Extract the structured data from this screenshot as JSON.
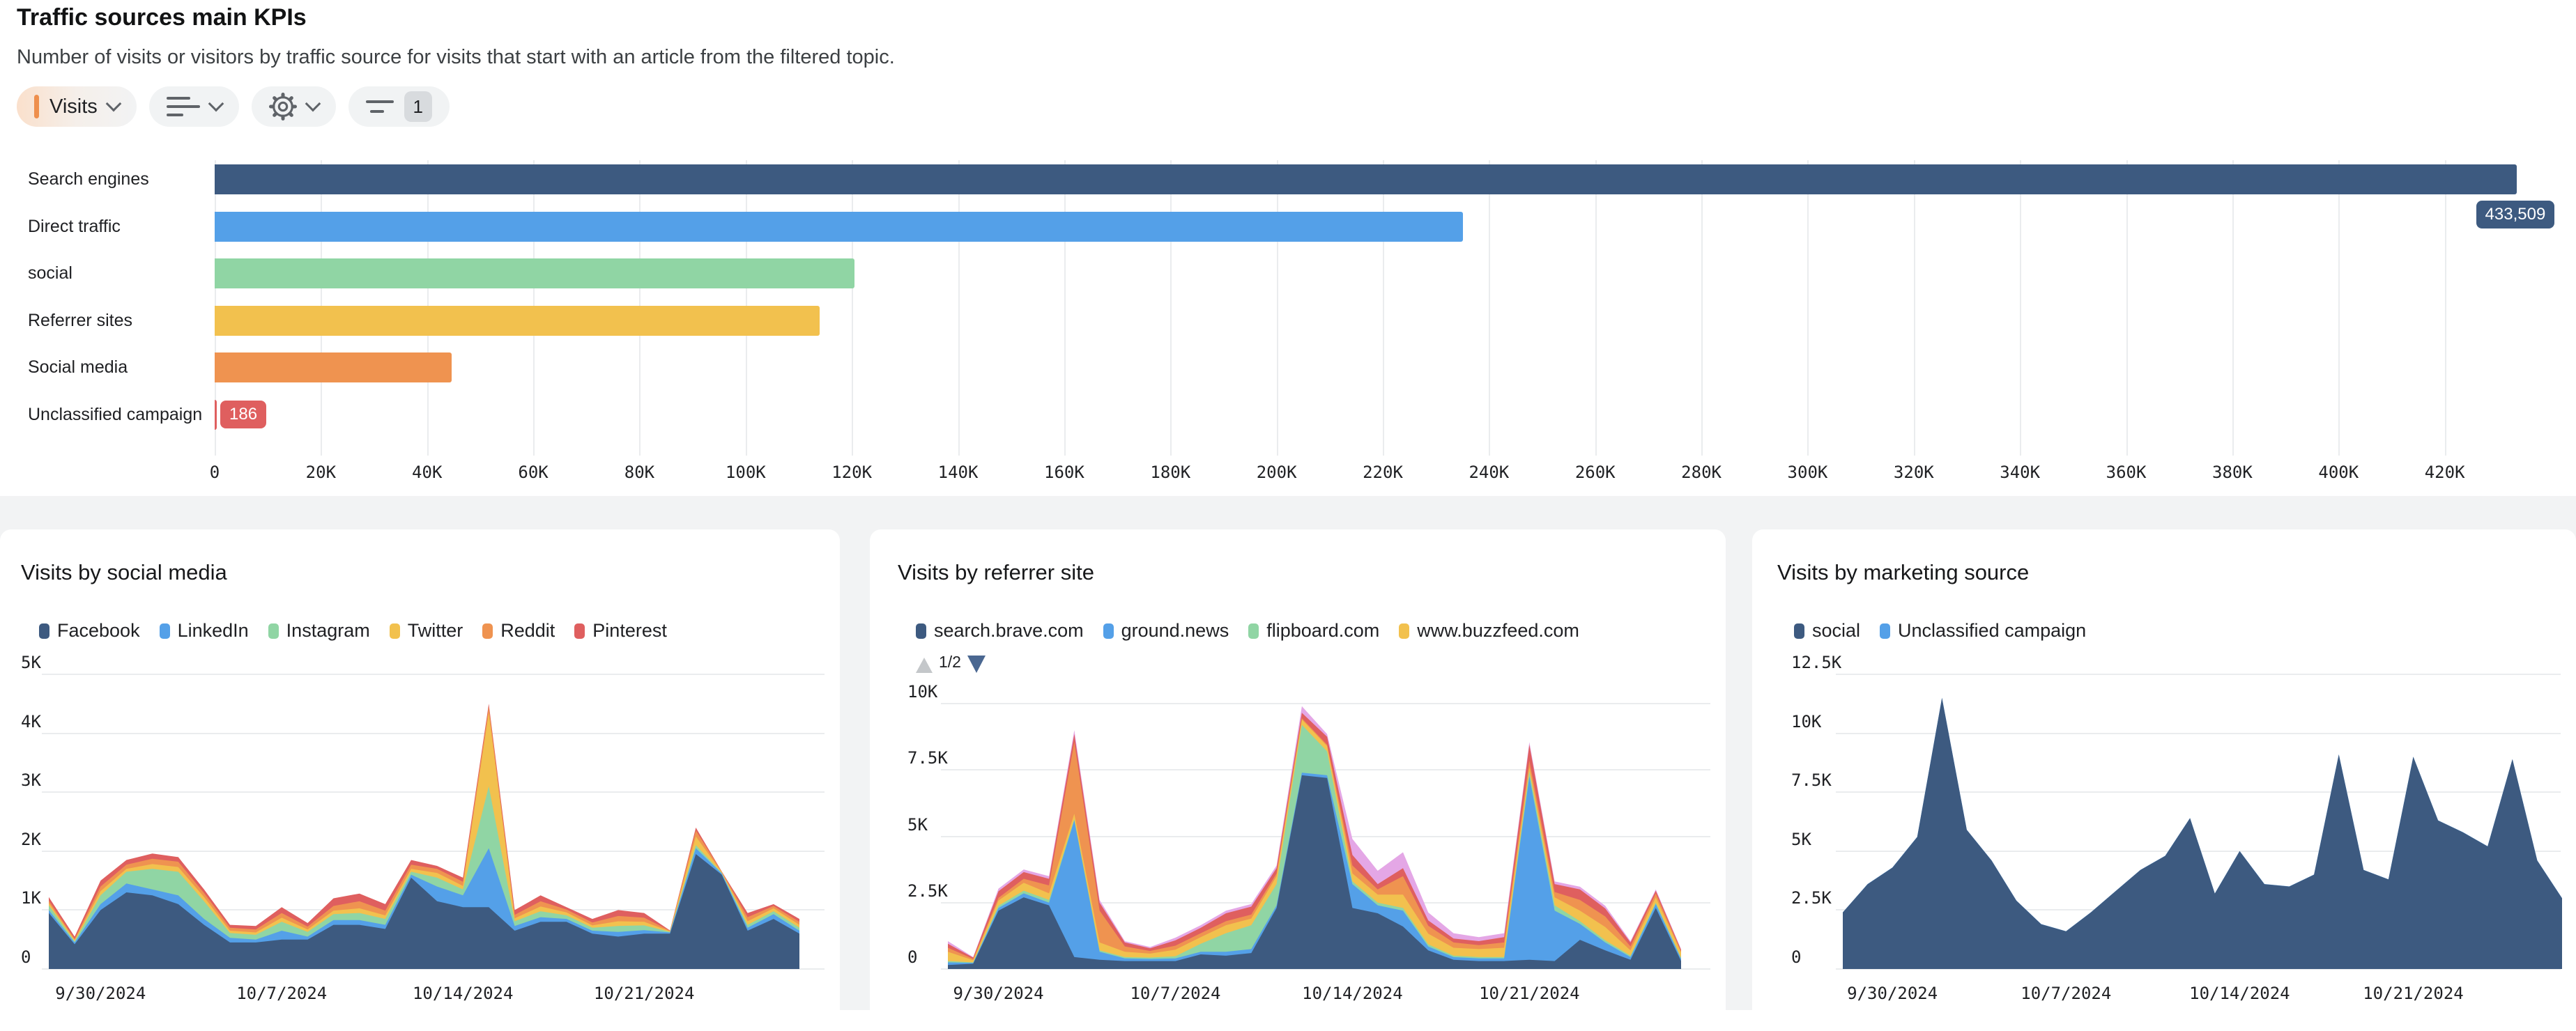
{
  "kpi": {
    "title": "Traffic sources main KPIs",
    "subtitle": "Number of visits or visitors by traffic source for visits that start with an article from the filtered topic.",
    "toolbar": {
      "metric_label": "Visits",
      "metric_color": "#EE8F4D",
      "chart_type_icon": "bar-list-icon",
      "settings_icon": "gear-icon",
      "filter_icon": "filter-icon",
      "filter_count": "1"
    }
  },
  "cards": [
    {
      "title": "Visits by social media"
    },
    {
      "title": "Visits by referrer site",
      "pager": {
        "label": "1/2",
        "up_enabled": false,
        "down_enabled": true
      }
    },
    {
      "title": "Visits by marketing source"
    }
  ],
  "chart_data": [
    {
      "id": "traffic-sources-main-kpis",
      "type": "bar",
      "orientation": "horizontal",
      "title": "Traffic sources main KPIs",
      "categories": [
        "Search engines",
        "Direct traffic",
        "social",
        "Referrer sites",
        "Social media",
        "Unclassified campaign"
      ],
      "values": [
        433509,
        235100,
        120500,
        113900,
        44600,
        186
      ],
      "colors": [
        "#3D5A80",
        "#54A0E8",
        "#90D5A4",
        "#F2C14E",
        "#EF9350",
        "#DF5F5F"
      ],
      "value_labels": [
        {
          "index": 0,
          "text": "433,509",
          "bg": "#3D5A80",
          "placement": "below-bar-end"
        },
        {
          "index": 5,
          "text": "186",
          "bg": "#DF5F5F",
          "placement": "after-bar"
        }
      ],
      "xlim": [
        0,
        440000
      ],
      "tick_step": 20000,
      "x_ticks": [
        "0",
        "20K",
        "40K",
        "60K",
        "80K",
        "100K",
        "120K",
        "140K",
        "160K",
        "180K",
        "200K",
        "220K",
        "240K",
        "260K",
        "280K",
        "300K",
        "320K",
        "340K",
        "360K",
        "380K",
        "400K",
        "420K"
      ],
      "grid": true
    },
    {
      "id": "visits-by-social-media",
      "type": "area",
      "stacked": true,
      "title": "Visits by social media",
      "n_points": 30,
      "x_ticks": [
        "9/30/2024",
        "10/7/2024",
        "10/14/2024",
        "10/21/2024"
      ],
      "x_tick_indices": [
        2,
        9,
        16,
        23
      ],
      "ymax": 5000,
      "y_ticks": [
        {
          "v": 0,
          "label": "0"
        },
        {
          "v": 1000,
          "label": "1K"
        },
        {
          "v": 2000,
          "label": "2K"
        },
        {
          "v": 3000,
          "label": "3K"
        },
        {
          "v": 4000,
          "label": "4K"
        },
        {
          "v": 5000,
          "label": "5K"
        }
      ],
      "legend_position": "top",
      "series": [
        {
          "name": "Facebook",
          "color": "#3D5A80",
          "in_legend": true,
          "values": [
            950,
            420,
            1000,
            1300,
            1250,
            1100,
            750,
            450,
            450,
            500,
            500,
            750,
            750,
            680,
            1550,
            1150,
            1050,
            1050,
            650,
            800,
            800,
            600,
            550,
            600,
            600,
            1950,
            1600,
            650,
            850,
            600
          ]
        },
        {
          "name": "LinkedIn",
          "color": "#54A0E8",
          "in_legend": true,
          "values": [
            50,
            30,
            100,
            150,
            100,
            150,
            100,
            80,
            50,
            150,
            50,
            80,
            80,
            70,
            50,
            250,
            200,
            1000,
            80,
            80,
            50,
            50,
            80,
            60,
            20,
            100,
            20,
            50,
            80,
            50
          ]
        },
        {
          "name": "Instagram",
          "color": "#90D5A4",
          "in_legend": true,
          "values": [
            80,
            20,
            150,
            200,
            350,
            400,
            300,
            80,
            80,
            150,
            80,
            100,
            120,
            100,
            50,
            150,
            100,
            1050,
            80,
            100,
            60,
            50,
            100,
            80,
            10,
            50,
            10,
            50,
            50,
            50
          ]
        },
        {
          "name": "Twitter",
          "color": "#F2C14E",
          "in_legend": true,
          "values": [
            40,
            20,
            70,
            50,
            80,
            80,
            70,
            40,
            40,
            70,
            40,
            60,
            80,
            60,
            50,
            80,
            60,
            1250,
            50,
            80,
            50,
            40,
            80,
            60,
            10,
            150,
            10,
            60,
            50,
            50
          ]
        },
        {
          "name": "Reddit",
          "color": "#EF9350",
          "in_legend": true,
          "values": [
            40,
            20,
            80,
            70,
            90,
            90,
            70,
            50,
            50,
            80,
            50,
            80,
            120,
            80,
            70,
            70,
            70,
            100,
            60,
            90,
            50,
            50,
            90,
            70,
            10,
            100,
            10,
            70,
            40,
            50
          ]
        },
        {
          "name": "Pinterest",
          "color": "#DF5F5F",
          "in_legend": true,
          "values": [
            60,
            40,
            100,
            80,
            90,
            80,
            60,
            50,
            60,
            100,
            60,
            130,
            130,
            110,
            80,
            50,
            70,
            50,
            80,
            100,
            40,
            60,
            100,
            80,
            5,
            50,
            5,
            70,
            30,
            50
          ]
        }
      ]
    },
    {
      "id": "visits-by-referrer-site",
      "type": "area",
      "stacked": true,
      "title": "Visits by referrer site",
      "legend_page": "1/2",
      "n_points": 30,
      "x_ticks": [
        "9/30/2024",
        "10/7/2024",
        "10/14/2024",
        "10/21/2024"
      ],
      "x_tick_indices": [
        2,
        9,
        16,
        23
      ],
      "ymax": 10000,
      "y_ticks": [
        {
          "v": 0,
          "label": "0"
        },
        {
          "v": 2500,
          "label": "2.5K"
        },
        {
          "v": 5000,
          "label": "5K"
        },
        {
          "v": 7500,
          "label": "7.5K"
        },
        {
          "v": 10000,
          "label": "10K"
        }
      ],
      "legend_position": "top",
      "series": [
        {
          "name": "search.brave.com",
          "color": "#3D5A80",
          "in_legend": true,
          "values": [
            150,
            200,
            2200,
            2700,
            2400,
            450,
            350,
            300,
            300,
            300,
            550,
            500,
            600,
            2300,
            7300,
            7200,
            2300,
            2100,
            1600,
            700,
            350,
            300,
            300,
            350,
            300,
            1100,
            700,
            350,
            2300,
            300
          ]
        },
        {
          "name": "ground.news",
          "color": "#54A0E8",
          "in_legend": true,
          "values": [
            100,
            30,
            100,
            150,
            100,
            5150,
            300,
            100,
            80,
            100,
            100,
            150,
            150,
            100,
            100,
            100,
            900,
            300,
            600,
            150,
            100,
            100,
            100,
            6900,
            1900,
            600,
            300,
            100,
            150,
            80
          ]
        },
        {
          "name": "flipboard.com",
          "color": "#90D5A4",
          "in_legend": true,
          "values": [
            50,
            20,
            80,
            100,
            100,
            50,
            50,
            50,
            50,
            80,
            300,
            700,
            900,
            800,
            1800,
            900,
            100,
            100,
            100,
            80,
            50,
            50,
            50,
            200,
            200,
            100,
            80,
            50,
            50,
            40
          ]
        },
        {
          "name": "www.buzzfeed.com",
          "color": "#F2C14E",
          "in_legend": true,
          "values": [
            350,
            80,
            200,
            300,
            250,
            200,
            300,
            200,
            150,
            250,
            250,
            300,
            250,
            300,
            200,
            200,
            300,
            300,
            500,
            400,
            300,
            300,
            350,
            150,
            300,
            400,
            500,
            200,
            200,
            200
          ]
        },
        {
          "name": "",
          "color": "#EF9350",
          "in_legend": false,
          "values": [
            150,
            50,
            100,
            150,
            300,
            2700,
            1200,
            200,
            100,
            150,
            150,
            150,
            150,
            100,
            50,
            50,
            300,
            200,
            700,
            300,
            200,
            150,
            200,
            250,
            200,
            400,
            400,
            150,
            150,
            50
          ]
        },
        {
          "name": "",
          "color": "#DF5F5F",
          "in_legend": false,
          "values": [
            150,
            50,
            250,
            250,
            250,
            300,
            300,
            150,
            100,
            200,
            200,
            300,
            300,
            200,
            200,
            300,
            400,
            200,
            300,
            200,
            150,
            150,
            200,
            600,
            300,
            400,
            300,
            150,
            100,
            50
          ]
        },
        {
          "name": "",
          "color": "#E4A7E6",
          "in_legend": false,
          "values": [
            100,
            20,
            100,
            100,
            100,
            150,
            100,
            50,
            50,
            100,
            100,
            100,
            100,
            100,
            250,
            100,
            600,
            500,
            600,
            300,
            200,
            150,
            150,
            100,
            100,
            100,
            100,
            50,
            50,
            30
          ]
        }
      ]
    },
    {
      "id": "visits-by-marketing-source",
      "type": "area",
      "stacked": true,
      "title": "Visits by marketing source",
      "n_points": 30,
      "x_ticks": [
        "9/30/2024",
        "10/7/2024",
        "10/14/2024",
        "10/21/2024"
      ],
      "x_tick_indices": [
        2,
        9,
        16,
        23
      ],
      "ymax": 12500,
      "y_ticks": [
        {
          "v": 0,
          "label": "0"
        },
        {
          "v": 2500,
          "label": "2.5K"
        },
        {
          "v": 5000,
          "label": "5K"
        },
        {
          "v": 7500,
          "label": "7.5K"
        },
        {
          "v": 10000,
          "label": "10K"
        },
        {
          "v": 12500,
          "label": "12.5K"
        }
      ],
      "legend_position": "top",
      "series": [
        {
          "name": "social",
          "color": "#3D5A80",
          "in_legend": true,
          "values": [
            2400,
            3600,
            4300,
            5600,
            11500,
            5900,
            4600,
            2900,
            1900,
            1600,
            2400,
            3300,
            4200,
            4800,
            6400,
            3200,
            5000,
            3600,
            3500,
            4000,
            9100,
            4200,
            3800,
            9000,
            6300,
            5800,
            5200,
            8900,
            4600,
            3000
          ]
        },
        {
          "name": "Unclassified campaign",
          "color": "#54A0E8",
          "in_legend": true,
          "values": [
            6,
            6,
            6,
            6,
            6,
            6,
            6,
            6,
            6,
            6,
            6,
            6,
            6,
            6,
            6,
            6,
            6,
            6,
            6,
            6,
            6,
            6,
            6,
            6,
            6,
            6,
            6,
            6,
            6,
            6
          ]
        }
      ]
    }
  ]
}
